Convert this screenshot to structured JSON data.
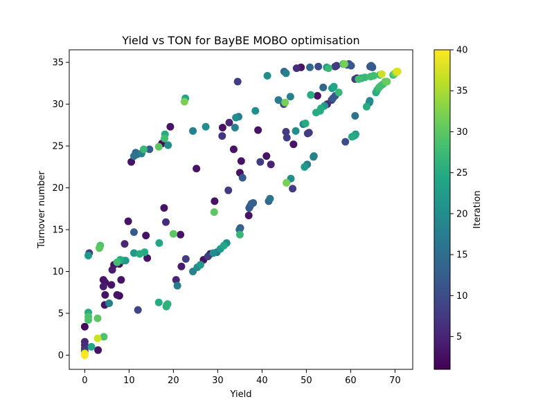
{
  "chart_data": {
    "type": "scatter",
    "title": "Yield vs TON for BayBE MOBO optimisation",
    "xlabel": "Yield",
    "ylabel": "Turnover number",
    "xlim": [
      -3.5,
      74
    ],
    "ylim": [
      -1.7,
      36.5
    ],
    "xticks": [
      0,
      10,
      20,
      30,
      40,
      50,
      60,
      70
    ],
    "yticks": [
      0,
      5,
      10,
      15,
      20,
      25,
      30,
      35
    ],
    "grid": false,
    "colorbar": {
      "label": "Iteration",
      "range": [
        1,
        40
      ],
      "ticks": [
        5,
        10,
        15,
        20,
        25,
        30,
        35,
        40
      ],
      "colormap": "viridis"
    },
    "points": [
      [
        0,
        0,
        40
      ],
      [
        0,
        0.2,
        38
      ],
      [
        0,
        0.5,
        8
      ],
      [
        0,
        0.8,
        5
      ],
      [
        0,
        1.2,
        6
      ],
      [
        0,
        1.6,
        5
      ],
      [
        0,
        3.4,
        2
      ],
      [
        0.8,
        4.2,
        29
      ],
      [
        0.8,
        4.6,
        29
      ],
      [
        0.8,
        5.1,
        25
      ],
      [
        0.8,
        11.9,
        22
      ],
      [
        1,
        12.2,
        8
      ],
      [
        1.5,
        1,
        24
      ],
      [
        2.9,
        2,
        37
      ],
      [
        2.9,
        4.4,
        30
      ],
      [
        3,
        0.6,
        3
      ],
      [
        3.3,
        12.8,
        30
      ],
      [
        3.5,
        13.1,
        29
      ],
      [
        4.3,
        2.2,
        29
      ],
      [
        4.2,
        8.2,
        4
      ],
      [
        4.2,
        9,
        3
      ],
      [
        4.6,
        8.7,
        3
      ],
      [
        4.5,
        6,
        3
      ],
      [
        4.6,
        7.2,
        3
      ],
      [
        5.5,
        6.2,
        18
      ],
      [
        6,
        8.4,
        3
      ],
      [
        6.2,
        10.2,
        4
      ],
      [
        6.6,
        10.8,
        3
      ],
      [
        7.3,
        11.1,
        28
      ],
      [
        7.3,
        7.2,
        3
      ],
      [
        7.8,
        7.1,
        2
      ],
      [
        7.8,
        10.9,
        3
      ],
      [
        8,
        11.4,
        25
      ],
      [
        8.2,
        9,
        3
      ],
      [
        8.6,
        11.3,
        20
      ],
      [
        9.2,
        11.3,
        22
      ],
      [
        9,
        13.3,
        5
      ],
      [
        9.8,
        16,
        3
      ],
      [
        10.5,
        23.1,
        3
      ],
      [
        11.1,
        14.7,
        12
      ],
      [
        11.1,
        12.2,
        22
      ],
      [
        11.1,
        23.8,
        16
      ],
      [
        11.5,
        24.2,
        14
      ],
      [
        11.8,
        24,
        15
      ],
      [
        12,
        5.4,
        9
      ],
      [
        12.4,
        12.1,
        25
      ],
      [
        12.8,
        24.1,
        18
      ],
      [
        13.3,
        24.6,
        27
      ],
      [
        13.5,
        12.3,
        25
      ],
      [
        13.8,
        14.3,
        3
      ],
      [
        14.1,
        11.6,
        3
      ],
      [
        14.6,
        24.6,
        12
      ],
      [
        16.7,
        24.9,
        30
      ],
      [
        16.8,
        13.4,
        24
      ],
      [
        16.7,
        6.3,
        25
      ],
      [
        17.4,
        25.3,
        2
      ],
      [
        17.9,
        17.6,
        3
      ],
      [
        18,
        25.9,
        28
      ],
      [
        18.1,
        26.4,
        25
      ],
      [
        18.3,
        15.9,
        6
      ],
      [
        18.4,
        5.8,
        26
      ],
      [
        18.5,
        6,
        25
      ],
      [
        18.7,
        6.1,
        26
      ],
      [
        18.8,
        25.1,
        20
      ],
      [
        19.3,
        27.3,
        3
      ],
      [
        20,
        14.5,
        30
      ],
      [
        20.6,
        9,
        5
      ],
      [
        20.9,
        8.3,
        17
      ],
      [
        21.6,
        14.4,
        3
      ],
      [
        21.8,
        10.6,
        4
      ],
      [
        22.5,
        30.3,
        32
      ],
      [
        22.7,
        30.7,
        24
      ],
      [
        22.8,
        11.5,
        8
      ],
      [
        24.4,
        26.8,
        18
      ],
      [
        24.4,
        10,
        18
      ],
      [
        25.2,
        22.3,
        3
      ],
      [
        25.4,
        10.5,
        20
      ],
      [
        26.1,
        10.8,
        22
      ],
      [
        26.8,
        11.4,
        3
      ],
      [
        27.3,
        27.3,
        20
      ],
      [
        27.8,
        11.8,
        8
      ],
      [
        28.3,
        12.1,
        3
      ],
      [
        29,
        12.2,
        20
      ],
      [
        29.2,
        17.1,
        30
      ],
      [
        29.3,
        18.4,
        3
      ],
      [
        29.8,
        12.3,
        16
      ],
      [
        30.6,
        12.7,
        22
      ],
      [
        31,
        26.2,
        7
      ],
      [
        31.1,
        27.2,
        3
      ],
      [
        31.4,
        13.1,
        24
      ],
      [
        32,
        13.4,
        20
      ],
      [
        32.4,
        19.7,
        8
      ],
      [
        32.6,
        27.8,
        5
      ],
      [
        33.6,
        24.6,
        3
      ],
      [
        33.9,
        27.2,
        18
      ],
      [
        34.1,
        28.4,
        20
      ],
      [
        34.5,
        32.7,
        8
      ],
      [
        34.7,
        28.5,
        17
      ],
      [
        34.9,
        15,
        14
      ],
      [
        35,
        14.4,
        27
      ],
      [
        35,
        21.8,
        3
      ],
      [
        35.1,
        15.2,
        12
      ],
      [
        35.3,
        23.2,
        3
      ],
      [
        35.6,
        21.2,
        12
      ],
      [
        37,
        16.7,
        3
      ],
      [
        37.1,
        17.6,
        12
      ],
      [
        37.3,
        17.8,
        12
      ],
      [
        37.6,
        18.1,
        13
      ],
      [
        38,
        18.2,
        13
      ],
      [
        38.5,
        29.2,
        20
      ],
      [
        39.1,
        26.9,
        3
      ],
      [
        39.6,
        23.1,
        8
      ],
      [
        41,
        23.8,
        3
      ],
      [
        41.2,
        33.4,
        20
      ],
      [
        41.5,
        18.4,
        13
      ],
      [
        41.8,
        18.7,
        16
      ],
      [
        42,
        22.8,
        5
      ],
      [
        43.7,
        30.5,
        17
      ],
      [
        44.9,
        30,
        10
      ],
      [
        45,
        33.9,
        14
      ],
      [
        45.2,
        30.2,
        32
      ],
      [
        45.4,
        33.7,
        18
      ],
      [
        45.5,
        20.6,
        32
      ],
      [
        45.4,
        26.7,
        8
      ],
      [
        45.6,
        26,
        8
      ],
      [
        46.4,
        30.9,
        18
      ],
      [
        46.5,
        21.1,
        20
      ],
      [
        46.9,
        19.9,
        8
      ],
      [
        47.1,
        25.2,
        3
      ],
      [
        47.6,
        26.8,
        20
      ],
      [
        47.8,
        34.3,
        6
      ],
      [
        48.8,
        34.4,
        3
      ],
      [
        49.3,
        27.6,
        18
      ],
      [
        49.6,
        22.5,
        22
      ],
      [
        49.8,
        27.7,
        25
      ],
      [
        50.2,
        22.8,
        18
      ],
      [
        50.3,
        26.5,
        8
      ],
      [
        50.6,
        26.6,
        8
      ],
      [
        50.8,
        34.4,
        14
      ],
      [
        51,
        31.1,
        25
      ],
      [
        51.6,
        23.7,
        18
      ],
      [
        51.7,
        23.8,
        18
      ],
      [
        52.2,
        29,
        25
      ],
      [
        52.5,
        31,
        3
      ],
      [
        52.7,
        34.5,
        10
      ],
      [
        53.1,
        29.2,
        25
      ],
      [
        53.3,
        29.5,
        25
      ],
      [
        53.8,
        32,
        14
      ],
      [
        54.1,
        29.8,
        22
      ],
      [
        54.6,
        34.4,
        22
      ],
      [
        54.7,
        30,
        5
      ],
      [
        55,
        34.3,
        27
      ],
      [
        55.7,
        30.5,
        8
      ],
      [
        55.8,
        31.9,
        22
      ],
      [
        56,
        30.7,
        12
      ],
      [
        56.5,
        34.5,
        8
      ],
      [
        56.2,
        32.1,
        24
      ],
      [
        56.5,
        31,
        12
      ],
      [
        56.8,
        34.6,
        6
      ],
      [
        57.3,
        31.4,
        27
      ],
      [
        58.3,
        34.8,
        28
      ],
      [
        58.6,
        34.8,
        32
      ],
      [
        58.8,
        25.5,
        10
      ],
      [
        59.2,
        34.7,
        8
      ],
      [
        59.6,
        34.8,
        10
      ],
      [
        60.1,
        34.6,
        12
      ],
      [
        60.3,
        26.1,
        25
      ],
      [
        60.7,
        26.2,
        22
      ],
      [
        61,
        33,
        8
      ],
      [
        61,
        26.3,
        24
      ],
      [
        61.1,
        26.4,
        20
      ],
      [
        61,
        28.6,
        16
      ],
      [
        61.4,
        33.1,
        3
      ],
      [
        61.8,
        33,
        28
      ],
      [
        62.4,
        33.1,
        22
      ],
      [
        63.2,
        33.2,
        27
      ],
      [
        63.6,
        29.7,
        25
      ],
      [
        64.2,
        30.2,
        15
      ],
      [
        64.3,
        30.4,
        20
      ],
      [
        64.4,
        34.5,
        10
      ],
      [
        64.6,
        34.6,
        12
      ],
      [
        64.5,
        33.3,
        28
      ],
      [
        64.8,
        34.5,
        10
      ],
      [
        64.9,
        34.4,
        12
      ],
      [
        65.2,
        33.4,
        28
      ],
      [
        65.7,
        31.4,
        25
      ],
      [
        66,
        31.7,
        26
      ],
      [
        66.4,
        32,
        28
      ],
      [
        66.6,
        33.5,
        28
      ],
      [
        66.8,
        32.2,
        28
      ],
      [
        67,
        33.6,
        37
      ],
      [
        67.3,
        32.4,
        28
      ],
      [
        67.8,
        32.7,
        30
      ],
      [
        68.2,
        32.7,
        31
      ],
      [
        69.6,
        33.5,
        25
      ],
      [
        69.8,
        33.6,
        30
      ],
      [
        70,
        33.7,
        28
      ],
      [
        70.2,
        33.8,
        35
      ],
      [
        70.4,
        33.9,
        37
      ],
      [
        70.6,
        33.9,
        38
      ]
    ]
  }
}
